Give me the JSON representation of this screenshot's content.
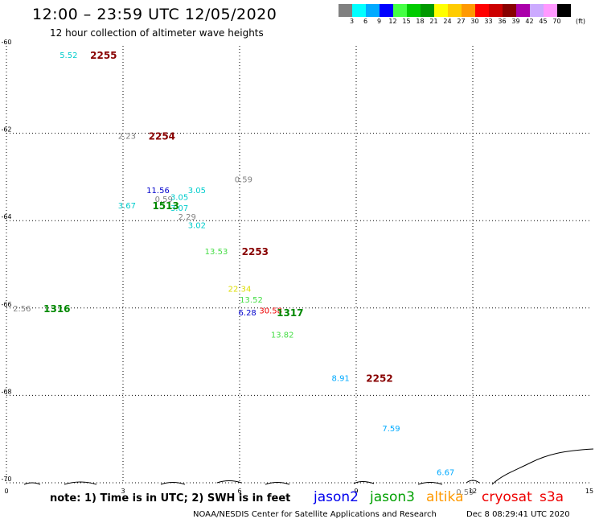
{
  "header": {
    "title": "12:00 – 23:59 UTC 12/05/2020",
    "subtitle": "12 hour collection of altimeter wave heights"
  },
  "scale": {
    "colors": [
      "#808080",
      "#00ffff",
      "#00aaff",
      "#0000ff",
      "#44ff44",
      "#00cc00",
      "#009900",
      "#ffff00",
      "#ffcc00",
      "#ff9900",
      "#ff0000",
      "#cc0000",
      "#880000",
      "#aa00aa",
      "#ccaaff",
      "#ff99ff",
      "#000000"
    ],
    "labels": [
      "3",
      "6",
      "9",
      "12",
      "15",
      "18",
      "21",
      "24",
      "27",
      "30",
      "33",
      "36",
      "39",
      "42",
      "45",
      "70"
    ],
    "unit": "(ft)"
  },
  "axes": {
    "x_ticks": [
      "0",
      "3",
      "6",
      "9",
      "12",
      "15"
    ],
    "y_ticks": [
      "-60",
      "-62",
      "-64",
      "-66",
      "-68",
      "-70"
    ]
  },
  "observations": [
    {
      "text": "5.52",
      "x": 1.6,
      "y": -60.2,
      "color": "#00cccc"
    },
    {
      "text": "2.23",
      "x": 3.1,
      "y": -62.05,
      "color": "#808080"
    },
    {
      "text": "0.59",
      "x": 6.1,
      "y": -63.05,
      "color": "#808080"
    },
    {
      "text": "11.56",
      "x": 3.9,
      "y": -63.3,
      "color": "#0000cc"
    },
    {
      "text": "3.05",
      "x": 4.9,
      "y": -63.3,
      "color": "#00cccc"
    },
    {
      "text": "0.59",
      "x": 4.05,
      "y": -63.5,
      "color": "#808080"
    },
    {
      "text": "3.05",
      "x": 4.45,
      "y": -63.45,
      "color": "#00cccc"
    },
    {
      "text": "3.07",
      "x": 4.45,
      "y": -63.7,
      "color": "#00cccc"
    },
    {
      "text": "3.67",
      "x": 3.1,
      "y": -63.65,
      "color": "#00cccc"
    },
    {
      "text": "2.29",
      "x": 4.65,
      "y": -63.9,
      "color": "#808080"
    },
    {
      "text": "3.02",
      "x": 4.9,
      "y": -64.1,
      "color": "#00cccc"
    },
    {
      "text": "13.53",
      "x": 5.4,
      "y": -64.7,
      "color": "#44dd44"
    },
    {
      "text": "22.34",
      "x": 6.0,
      "y": -65.55,
      "color": "#dddd00"
    },
    {
      "text": "13.52",
      "x": 6.3,
      "y": -65.8,
      "color": "#44dd44"
    },
    {
      "text": "6.28",
      "x": 6.2,
      "y": -66.1,
      "color": "#0000cc"
    },
    {
      "text": "30.58",
      "x": 6.8,
      "y": -66.05,
      "color": "#ee0000"
    },
    {
      "text": "13.82",
      "x": 7.1,
      "y": -66.6,
      "color": "#44dd44"
    },
    {
      "text": "2.56",
      "x": 0.4,
      "y": -66.0,
      "color": "#808080"
    },
    {
      "text": "8.91",
      "x": 8.6,
      "y": -67.6,
      "color": "#00aaff"
    },
    {
      "text": "7.59",
      "x": 9.9,
      "y": -68.75,
      "color": "#00aaff"
    },
    {
      "text": "6.67",
      "x": 11.3,
      "y": -69.75,
      "color": "#00aaff"
    },
    {
      "text": "0.59",
      "x": 11.8,
      "y": -70.2,
      "color": "#808080"
    }
  ],
  "storms": [
    {
      "text": "2255",
      "x": 2.5,
      "y": -60.2,
      "color": "#880000"
    },
    {
      "text": "2254",
      "x": 4.0,
      "y": -62.05,
      "color": "#880000"
    },
    {
      "text": "1513",
      "x": 4.1,
      "y": -63.65,
      "color": "#008800"
    },
    {
      "text": "2253",
      "x": 6.4,
      "y": -64.7,
      "color": "#880000"
    },
    {
      "text": "1316",
      "x": 1.3,
      "y": -66.0,
      "color": "#008800"
    },
    {
      "text": "1317",
      "x": 7.3,
      "y": -66.1,
      "color": "#008800"
    },
    {
      "text": "2252",
      "x": 9.6,
      "y": -67.6,
      "color": "#880000"
    }
  ],
  "footer": {
    "note": "note: 1) Time is in UTC; 2) SWH is in feet",
    "satellites": [
      {
        "name": "jason2"
      },
      {
        "name": "jason3"
      },
      {
        "name": "altika"
      },
      {
        "name": "cryosat"
      },
      {
        "name": "s3a"
      }
    ],
    "credit": "NOAA/NESDIS Center for Satellite Applications and Research",
    "timestamp": "Dec  8 08:29:41 UTC 2020"
  }
}
